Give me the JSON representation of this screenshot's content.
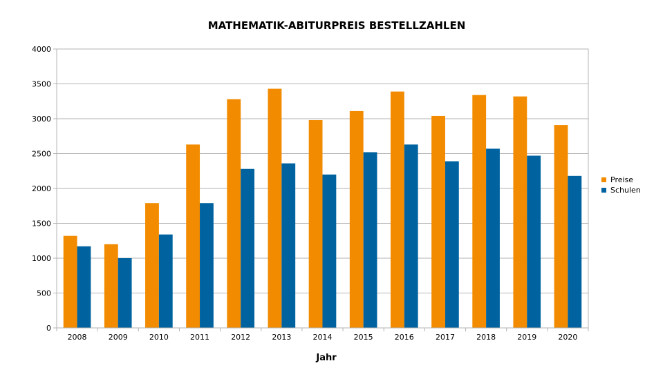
{
  "chart_data": {
    "type": "bar",
    "title": "MATHEMATIK-ABITURPREIS BESTELLZAHLEN",
    "xlabel": "Jahr",
    "ylabel": "",
    "ylim": [
      0,
      4000
    ],
    "yticks": [
      0,
      500,
      1000,
      1500,
      2000,
      2500,
      3000,
      3500,
      4000
    ],
    "grid": true,
    "legend_position": "right",
    "categories": [
      "2008",
      "2009",
      "2010",
      "2011",
      "2012",
      "2013",
      "2014",
      "2015",
      "2016",
      "2017",
      "2018",
      "2019",
      "2020"
    ],
    "series": [
      {
        "name": "Preise",
        "color": "#f28b00",
        "values": [
          1320,
          1200,
          1790,
          2630,
          3280,
          3430,
          2980,
          3110,
          3390,
          3040,
          3340,
          3320,
          2910
        ]
      },
      {
        "name": "Schulen",
        "color": "#0063a0",
        "values": [
          1170,
          1000,
          1340,
          1790,
          2280,
          2360,
          2200,
          2520,
          2630,
          2390,
          2570,
          2470,
          2180
        ]
      }
    ]
  }
}
